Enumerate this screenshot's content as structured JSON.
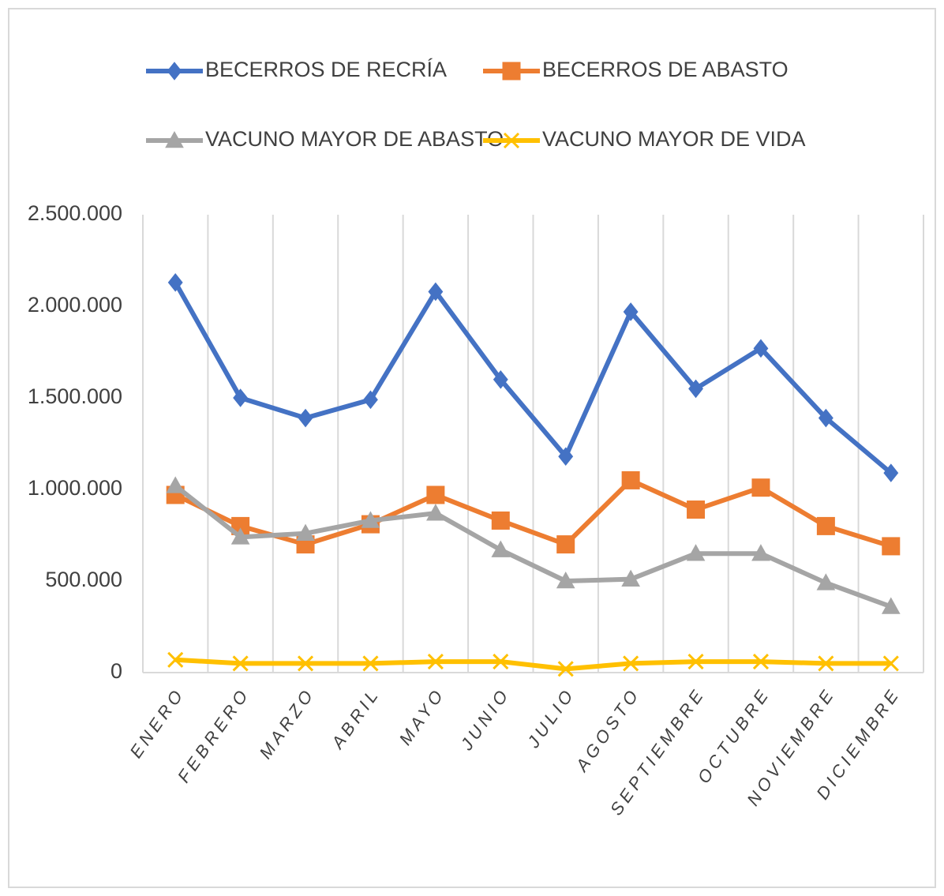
{
  "chart_data": {
    "type": "line",
    "categories": [
      "ENERO",
      "FEBRERO",
      "MARZO",
      "ABRIL",
      "MAYO",
      "JUNIO",
      "JULIO",
      "AGOSTO",
      "SEPTIEMBRE",
      "OCTUBRE",
      "NOVIEMBRE",
      "DICIEMBRE"
    ],
    "series": [
      {
        "name": "BECERROS DE RECRÍA",
        "color": "#4472c4",
        "marker": "diamond",
        "values": [
          2130000,
          1500000,
          1390000,
          1490000,
          2080000,
          1600000,
          1180000,
          1970000,
          1550000,
          1770000,
          1390000,
          1090000
        ]
      },
      {
        "name": "BECERROS DE ABASTO",
        "color": "#ed7d31",
        "marker": "square",
        "values": [
          970000,
          800000,
          700000,
          810000,
          970000,
          830000,
          700000,
          1050000,
          890000,
          1010000,
          800000,
          690000
        ]
      },
      {
        "name": "VACUNO MAYOR DE ABASTO",
        "color": "#a5a5a5",
        "marker": "triangle",
        "values": [
          1020000,
          740000,
          760000,
          830000,
          870000,
          670000,
          500000,
          510000,
          650000,
          650000,
          490000,
          360000
        ]
      },
      {
        "name": "VACUNO MAYOR DE VIDA",
        "color": "#ffc000",
        "marker": "x",
        "values": [
          70000,
          50000,
          50000,
          50000,
          60000,
          60000,
          20000,
          50000,
          60000,
          60000,
          50000,
          50000
        ]
      }
    ],
    "ylim": [
      0,
      2500000
    ],
    "yticks": [
      0,
      {
        "value": 500000,
        "label": "500.000"
      },
      {
        "value": 1000000,
        "label": "1.000.000"
      },
      {
        "value": 1500000,
        "label": "1.500.000"
      },
      {
        "value": 2000000,
        "label": "2.000.000"
      },
      {
        "value": 2500000,
        "label": "2.500.000"
      }
    ],
    "grid": "x",
    "legend": "top"
  }
}
